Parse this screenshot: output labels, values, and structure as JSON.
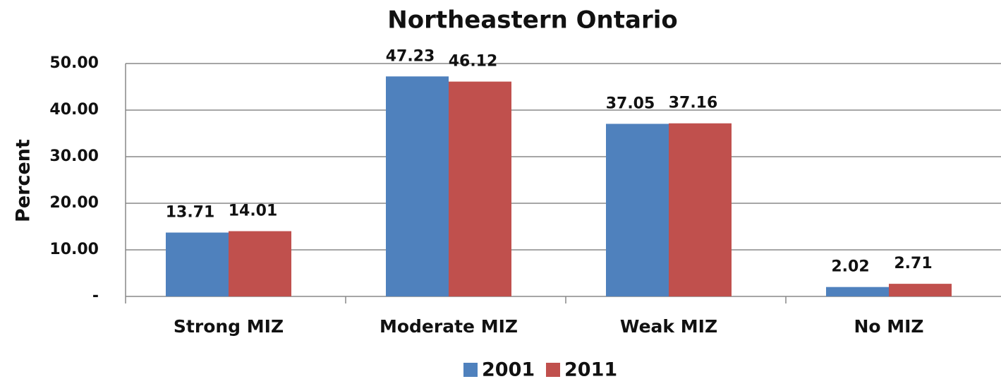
{
  "chart_data": {
    "type": "bar",
    "title": "Northeastern Ontario",
    "ylabel": "Percent",
    "categories": [
      "Strong MIZ",
      "Moderate MIZ",
      "Weak MIZ",
      "No MIZ"
    ],
    "series": [
      {
        "name": "2001",
        "color": "#4f81bd",
        "values": [
          13.71,
          47.23,
          37.05,
          2.02
        ]
      },
      {
        "name": "2011",
        "color": "#c0504d",
        "values": [
          14.01,
          46.12,
          37.16,
          2.71
        ]
      }
    ],
    "ylim": [
      0,
      50
    ],
    "yticks": [
      {
        "value": 0,
        "label": "-"
      },
      {
        "value": 10,
        "label": "10.00"
      },
      {
        "value": 20,
        "label": "20.00"
      },
      {
        "value": 30,
        "label": "30.00"
      },
      {
        "value": 40,
        "label": "40.00"
      },
      {
        "value": 50,
        "label": "50.00"
      }
    ],
    "grid": true,
    "legend": "bottom"
  }
}
